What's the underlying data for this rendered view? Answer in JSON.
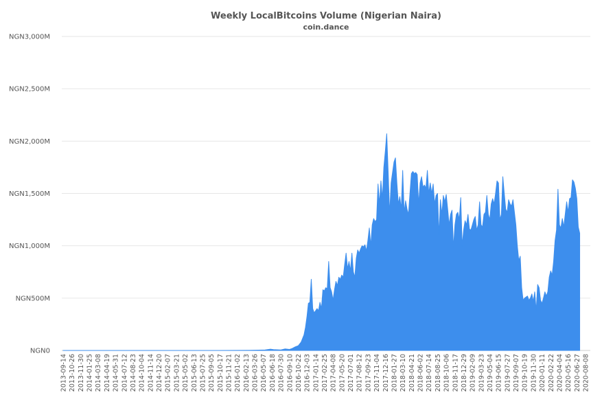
{
  "chart_data": {
    "type": "area",
    "title": "Weekly LocalBitcoins Volume (Nigerian Naira)",
    "subtitle": "coin.dance",
    "xlabel": "",
    "ylabel": "",
    "ylim": [
      0,
      3000
    ],
    "y_unit": "NGN millions",
    "y_ticks": [
      0,
      500,
      1000,
      1500,
      2000,
      2500,
      3000
    ],
    "y_tick_labels": [
      "NGN0",
      "NGN500M",
      "NGN1,000M",
      "NGN1,500M",
      "NGN2,000M",
      "NGN2,500M",
      "NGN3,000M"
    ],
    "x_tick_labels": [
      "2013-09-14",
      "2013-10-26",
      "2013-11-30",
      "2014-01-25",
      "2014-03-08",
      "2014-04-19",
      "2014-05-31",
      "2014-07-12",
      "2014-08-23",
      "2014-10-04",
      "2014-11-14",
      "2014-12-20",
      "2015-02-07",
      "2015-03-21",
      "2015-05-02",
      "2015-06-13",
      "2015-07-25",
      "2015-09-05",
      "2015-10-17",
      "2015-11-21",
      "2016-01-02",
      "2016-02-13",
      "2016-03-26",
      "2016-05-07",
      "2016-06-18",
      "2016-07-30",
      "2016-09-10",
      "2016-10-22",
      "2016-12-03",
      "2017-01-14",
      "2017-02-25",
      "2017-04-08",
      "2017-05-20",
      "2017-07-01",
      "2017-08-12",
      "2017-09-23",
      "2017-11-04",
      "2017-12-16",
      "2018-01-27",
      "2018-03-10",
      "2018-04-21",
      "2018-06-02",
      "2018-07-14",
      "2018-08-25",
      "2018-10-06",
      "2018-11-17",
      "2018-12-29",
      "2019-02-09",
      "2019-03-23",
      "2019-05-04",
      "2019-06-15",
      "2019-07-27",
      "2019-09-07",
      "2019-10-19",
      "2019-11-30",
      "2020-01-11",
      "2020-02-22",
      "2020-04-04",
      "2020-05-16",
      "2020-06-27",
      "2020-08-08"
    ],
    "grid": true,
    "legend": "none",
    "grid_color": "#e6e6e6",
    "series": [
      {
        "color": "#3d8eed",
        "points": [
          [
            "2013-09-14",
            0
          ],
          [
            "2014-06-01",
            0
          ],
          [
            "2015-01-01",
            0
          ],
          [
            "2015-10-01",
            0
          ],
          [
            "2016-03-01",
            2
          ],
          [
            "2016-05-15",
            5
          ],
          [
            "2016-06-10",
            12
          ],
          [
            "2016-06-25",
            8
          ],
          [
            "2016-07-30",
            5
          ],
          [
            "2016-08-20",
            15
          ],
          [
            "2016-09-10",
            10
          ],
          [
            "2016-09-24",
            20
          ],
          [
            "2016-10-08",
            35
          ],
          [
            "2016-10-22",
            45
          ],
          [
            "2016-11-05",
            80
          ],
          [
            "2016-11-19",
            150
          ],
          [
            "2016-11-26",
            220
          ],
          [
            "2016-12-03",
            320
          ],
          [
            "2016-12-10",
            450
          ],
          [
            "2016-12-17",
            460
          ],
          [
            "2016-12-24",
            680
          ],
          [
            "2016-12-31",
            400
          ],
          [
            "2017-01-07",
            360
          ],
          [
            "2017-01-14",
            380
          ],
          [
            "2017-01-21",
            400
          ],
          [
            "2017-01-28",
            380
          ],
          [
            "2017-02-04",
            460
          ],
          [
            "2017-02-11",
            400
          ],
          [
            "2017-02-18",
            580
          ],
          [
            "2017-02-25",
            570
          ],
          [
            "2017-03-04",
            600
          ],
          [
            "2017-03-11",
            590
          ],
          [
            "2017-03-18",
            850
          ],
          [
            "2017-03-25",
            600
          ],
          [
            "2017-04-01",
            560
          ],
          [
            "2017-04-08",
            480
          ],
          [
            "2017-04-15",
            580
          ],
          [
            "2017-04-22",
            660
          ],
          [
            "2017-04-29",
            620
          ],
          [
            "2017-05-06",
            700
          ],
          [
            "2017-05-13",
            680
          ],
          [
            "2017-05-20",
            720
          ],
          [
            "2017-05-27",
            700
          ],
          [
            "2017-06-03",
            820
          ],
          [
            "2017-06-10",
            930
          ],
          [
            "2017-06-17",
            780
          ],
          [
            "2017-06-24",
            850
          ],
          [
            "2017-07-01",
            760
          ],
          [
            "2017-07-08",
            930
          ],
          [
            "2017-07-15",
            750
          ],
          [
            "2017-07-22",
            700
          ],
          [
            "2017-07-29",
            880
          ],
          [
            "2017-08-05",
            960
          ],
          [
            "2017-08-12",
            930
          ],
          [
            "2017-08-19",
            970
          ],
          [
            "2017-08-26",
            1000
          ],
          [
            "2017-09-02",
            990
          ],
          [
            "2017-09-09",
            1010
          ],
          [
            "2017-09-16",
            950
          ],
          [
            "2017-09-23",
            1050
          ],
          [
            "2017-09-30",
            1170
          ],
          [
            "2017-10-07",
            1000
          ],
          [
            "2017-10-14",
            1200
          ],
          [
            "2017-10-21",
            1260
          ],
          [
            "2017-10-28",
            1230
          ],
          [
            "2017-11-04",
            1250
          ],
          [
            "2017-11-11",
            1590
          ],
          [
            "2017-11-18",
            1400
          ],
          [
            "2017-11-25",
            1620
          ],
          [
            "2017-12-02",
            1450
          ],
          [
            "2017-12-09",
            1750
          ],
          [
            "2017-12-16",
            1900
          ],
          [
            "2017-12-23",
            2070
          ],
          [
            "2017-12-30",
            1700
          ],
          [
            "2018-01-06",
            1300
          ],
          [
            "2018-01-13",
            1600
          ],
          [
            "2018-01-20",
            1700
          ],
          [
            "2018-01-27",
            1800
          ],
          [
            "2018-02-03",
            1840
          ],
          [
            "2018-02-10",
            1600
          ],
          [
            "2018-02-17",
            1400
          ],
          [
            "2018-02-24",
            1470
          ],
          [
            "2018-03-03",
            1350
          ],
          [
            "2018-03-10",
            1720
          ],
          [
            "2018-03-17",
            1320
          ],
          [
            "2018-03-24",
            1430
          ],
          [
            "2018-03-31",
            1350
          ],
          [
            "2018-04-07",
            1300
          ],
          [
            "2018-04-14",
            1500
          ],
          [
            "2018-04-21",
            1690
          ],
          [
            "2018-04-28",
            1710
          ],
          [
            "2018-05-05",
            1690
          ],
          [
            "2018-05-12",
            1700
          ],
          [
            "2018-05-19",
            1680
          ],
          [
            "2018-05-26",
            1400
          ],
          [
            "2018-06-02",
            1600
          ],
          [
            "2018-06-09",
            1660
          ],
          [
            "2018-06-16",
            1560
          ],
          [
            "2018-06-23",
            1580
          ],
          [
            "2018-06-30",
            1550
          ],
          [
            "2018-07-07",
            1720
          ],
          [
            "2018-07-14",
            1500
          ],
          [
            "2018-07-21",
            1600
          ],
          [
            "2018-07-28",
            1500
          ],
          [
            "2018-08-04",
            1590
          ],
          [
            "2018-08-11",
            1400
          ],
          [
            "2018-08-18",
            1480
          ],
          [
            "2018-08-25",
            1500
          ],
          [
            "2018-09-01",
            1100
          ],
          [
            "2018-09-08",
            1440
          ],
          [
            "2018-09-15",
            1300
          ],
          [
            "2018-09-22",
            1480
          ],
          [
            "2018-09-29",
            1420
          ],
          [
            "2018-10-06",
            1490
          ],
          [
            "2018-10-13",
            1350
          ],
          [
            "2018-10-20",
            1200
          ],
          [
            "2018-10-27",
            1300
          ],
          [
            "2018-11-03",
            1340
          ],
          [
            "2018-11-10",
            980
          ],
          [
            "2018-11-17",
            1200
          ],
          [
            "2018-11-24",
            1300
          ],
          [
            "2018-12-01",
            1320
          ],
          [
            "2018-12-08",
            1250
          ],
          [
            "2018-12-15",
            1460
          ],
          [
            "2018-12-22",
            1000
          ],
          [
            "2018-12-29",
            1150
          ],
          [
            "2019-01-05",
            1240
          ],
          [
            "2019-01-12",
            1200
          ],
          [
            "2019-01-19",
            1300
          ],
          [
            "2019-01-26",
            1160
          ],
          [
            "2019-02-02",
            1150
          ],
          [
            "2019-02-09",
            1200
          ],
          [
            "2019-02-16",
            1250
          ],
          [
            "2019-02-23",
            1280
          ],
          [
            "2019-03-02",
            1150
          ],
          [
            "2019-03-09",
            1200
          ],
          [
            "2019-03-16",
            1420
          ],
          [
            "2019-03-23",
            1200
          ],
          [
            "2019-03-30",
            1180
          ],
          [
            "2019-04-06",
            1300
          ],
          [
            "2019-04-13",
            1320
          ],
          [
            "2019-04-20",
            1480
          ],
          [
            "2019-04-27",
            1300
          ],
          [
            "2019-05-04",
            1250
          ],
          [
            "2019-05-11",
            1400
          ],
          [
            "2019-05-18",
            1450
          ],
          [
            "2019-05-25",
            1400
          ],
          [
            "2019-06-01",
            1500
          ],
          [
            "2019-06-08",
            1620
          ],
          [
            "2019-06-15",
            1600
          ],
          [
            "2019-06-22",
            1250
          ],
          [
            "2019-06-29",
            1300
          ],
          [
            "2019-07-06",
            1660
          ],
          [
            "2019-07-13",
            1500
          ],
          [
            "2019-07-20",
            1350
          ],
          [
            "2019-07-27",
            1320
          ],
          [
            "2019-08-03",
            1440
          ],
          [
            "2019-08-10",
            1400
          ],
          [
            "2019-08-17",
            1380
          ],
          [
            "2019-08-24",
            1440
          ],
          [
            "2019-08-31",
            1320
          ],
          [
            "2019-09-07",
            1200
          ],
          [
            "2019-09-14",
            1000
          ],
          [
            "2019-09-21",
            860
          ],
          [
            "2019-09-28",
            900
          ],
          [
            "2019-10-05",
            600
          ],
          [
            "2019-10-12",
            480
          ],
          [
            "2019-10-19",
            500
          ],
          [
            "2019-10-26",
            510
          ],
          [
            "2019-11-02",
            520
          ],
          [
            "2019-11-09",
            480
          ],
          [
            "2019-11-16",
            500
          ],
          [
            "2019-11-23",
            540
          ],
          [
            "2019-11-30",
            470
          ],
          [
            "2019-12-07",
            560
          ],
          [
            "2019-12-14",
            380
          ],
          [
            "2019-12-21",
            630
          ],
          [
            "2019-12-28",
            600
          ],
          [
            "2020-01-04",
            480
          ],
          [
            "2020-01-11",
            450
          ],
          [
            "2020-01-18",
            500
          ],
          [
            "2020-01-25",
            560
          ],
          [
            "2020-02-01",
            520
          ],
          [
            "2020-02-08",
            560
          ],
          [
            "2020-02-15",
            700
          ],
          [
            "2020-02-22",
            760
          ],
          [
            "2020-02-29",
            720
          ],
          [
            "2020-03-07",
            850
          ],
          [
            "2020-03-14",
            1050
          ],
          [
            "2020-03-21",
            1150
          ],
          [
            "2020-03-28",
            1540
          ],
          [
            "2020-04-04",
            1200
          ],
          [
            "2020-04-11",
            1170
          ],
          [
            "2020-04-18",
            1260
          ],
          [
            "2020-04-25",
            1180
          ],
          [
            "2020-05-02",
            1300
          ],
          [
            "2020-05-09",
            1420
          ],
          [
            "2020-05-16",
            1320
          ],
          [
            "2020-05-23",
            1450
          ],
          [
            "2020-05-30",
            1460
          ],
          [
            "2020-06-06",
            1630
          ],
          [
            "2020-06-13",
            1610
          ],
          [
            "2020-06-20",
            1550
          ],
          [
            "2020-06-27",
            1450
          ],
          [
            "2020-07-04",
            1180
          ],
          [
            "2020-07-11",
            1120
          ]
        ]
      }
    ]
  }
}
